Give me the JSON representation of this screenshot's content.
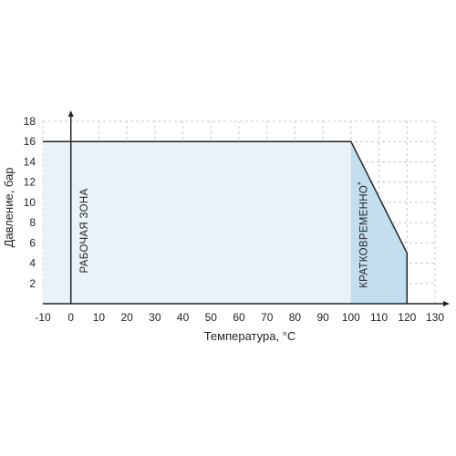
{
  "chart_data": {
    "type": "area",
    "xlabel": "Температура, °C",
    "ylabel": "Давление, бар",
    "xlim": [
      -10,
      130
    ],
    "ylim": [
      0,
      18
    ],
    "x_ticks": [
      "-10",
      "0",
      "10",
      "20",
      "30",
      "40",
      "50",
      "60",
      "70",
      "80",
      "90",
      "100",
      "110",
      "120",
      "130"
    ],
    "y_ticks": [
      "2",
      "4",
      "6",
      "8",
      "10",
      "12",
      "14",
      "16",
      "18"
    ],
    "grid": true,
    "working_zone": {
      "label": "РАБОЧАЯ ЗОНА",
      "x": [
        0,
        100
      ],
      "y": [
        16,
        16
      ],
      "color": "#e8f2f8"
    },
    "short_term_zone": {
      "label": "КРАТКОВРЕМЕННО",
      "marker": "*",
      "x": [
        100,
        120
      ],
      "y": [
        16,
        5
      ],
      "color": "#c2deef"
    },
    "limit_line": {
      "x": [
        -10,
        100,
        120,
        120
      ],
      "y": [
        16,
        16,
        5,
        0
      ],
      "color": "#222222"
    },
    "grid_color": "#c8c8c8",
    "axis_color": "#222222"
  }
}
